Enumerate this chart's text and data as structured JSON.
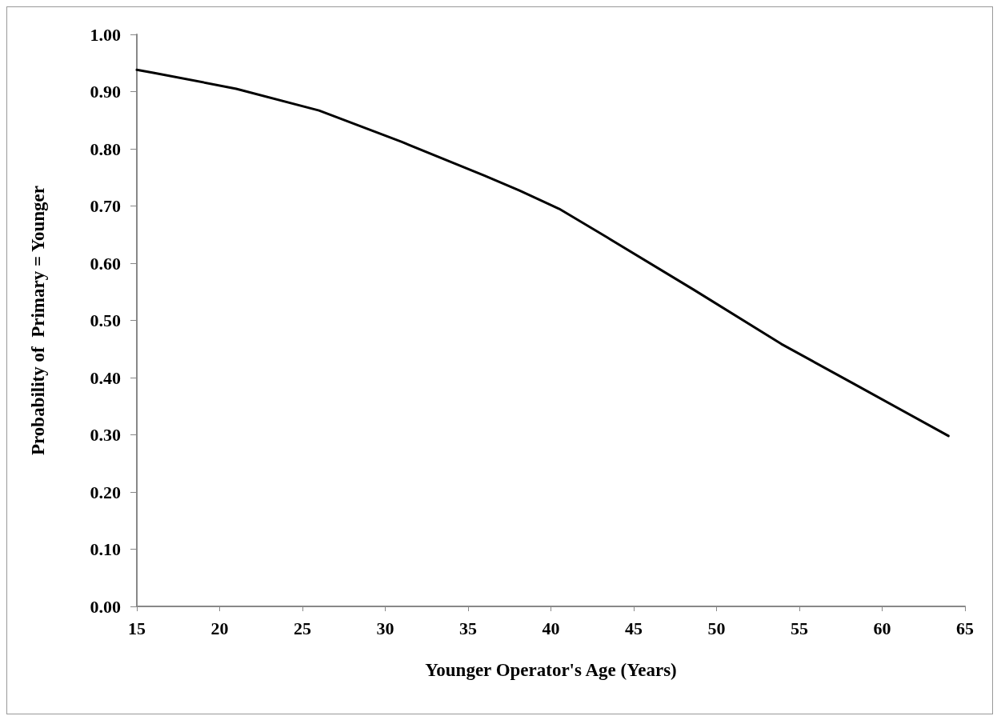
{
  "chart_data": {
    "type": "line",
    "xlabel": "Younger Operator's Age (Years)",
    "ylabel": "Probability of  Primary = Younger",
    "x": [
      15,
      16,
      21,
      26,
      31,
      36,
      38.1,
      40.5,
      43.4,
      48.6,
      53.9,
      58.3,
      64
    ],
    "series": [
      {
        "color": "#000000",
        "values": [
          0.938,
          0.933,
          0.905,
          0.867,
          0.812,
          0.753,
          0.727,
          0.695,
          0.645,
          0.554,
          0.459,
          0.389,
          0.298
        ]
      }
    ],
    "xlim": [
      15,
      65
    ],
    "xticks": [
      15,
      20,
      25,
      30,
      35,
      40,
      45,
      50,
      55,
      60,
      65
    ],
    "ylim": [
      0,
      1
    ],
    "yticks": [
      {
        "value": 0,
        "label": "0.00"
      },
      {
        "value": 0.1,
        "label": "0.10"
      },
      {
        "value": 0.2,
        "label": "0.20"
      },
      {
        "value": 0.3,
        "label": "0.30"
      },
      {
        "value": 0.4,
        "label": "0.40"
      },
      {
        "value": 0.5,
        "label": "0.50"
      },
      {
        "value": 0.6,
        "label": "0.60"
      },
      {
        "value": 0.7,
        "label": "0.70"
      },
      {
        "value": 0.8,
        "label": "0.80"
      },
      {
        "value": 0.9,
        "label": "0.90"
      },
      {
        "value": 1,
        "label": "1.00"
      }
    ],
    "grid": false,
    "marker": "none",
    "line_style": "solid"
  }
}
